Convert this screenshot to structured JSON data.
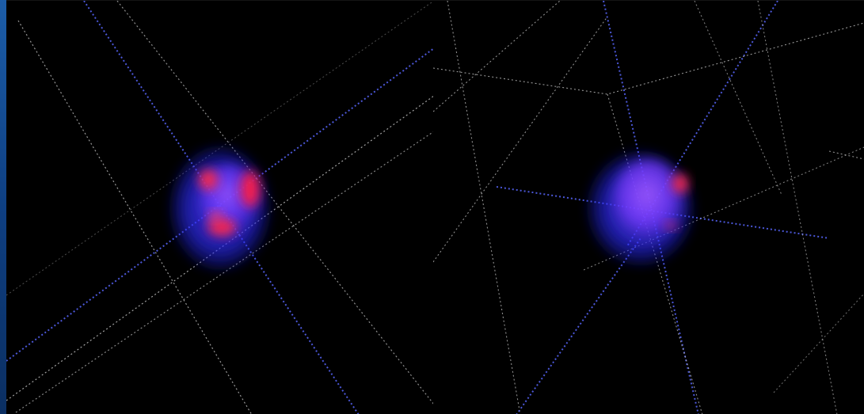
{
  "scene": {
    "background_color": "#000000",
    "frame_color": "#1b5aa5",
    "wireframe_white": "#bdbdbd",
    "wireframe_blue": "#4b57d8",
    "blob_blue": "#2e2dff",
    "blob_purple": "#8b43ff",
    "blob_red": "#ff2b4a"
  }
}
